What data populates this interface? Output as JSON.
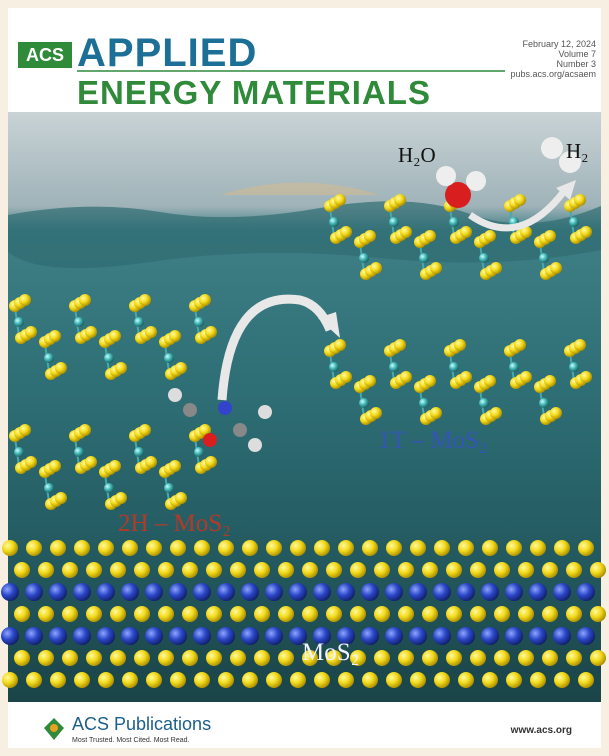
{
  "header": {
    "publisher": "ACS",
    "title_line1": "APPLIED",
    "title_line2": "ENERGY MATERIALS",
    "date": "February 12, 2024",
    "volume": "Volume 7",
    "number": "Number 3",
    "url": "pubs.acs.org/acsaem"
  },
  "image_labels": {
    "water": "H₂O",
    "hydrogen": "H₂",
    "phase_1t": "1T – MoS₂",
    "phase_2h": "2H – MoS₂",
    "bulk": "MoS₂"
  },
  "footer": {
    "brand": "ACS Publications",
    "tagline": "Most Trusted. Most Cited. Most Read.",
    "website": "www.acs.org"
  }
}
